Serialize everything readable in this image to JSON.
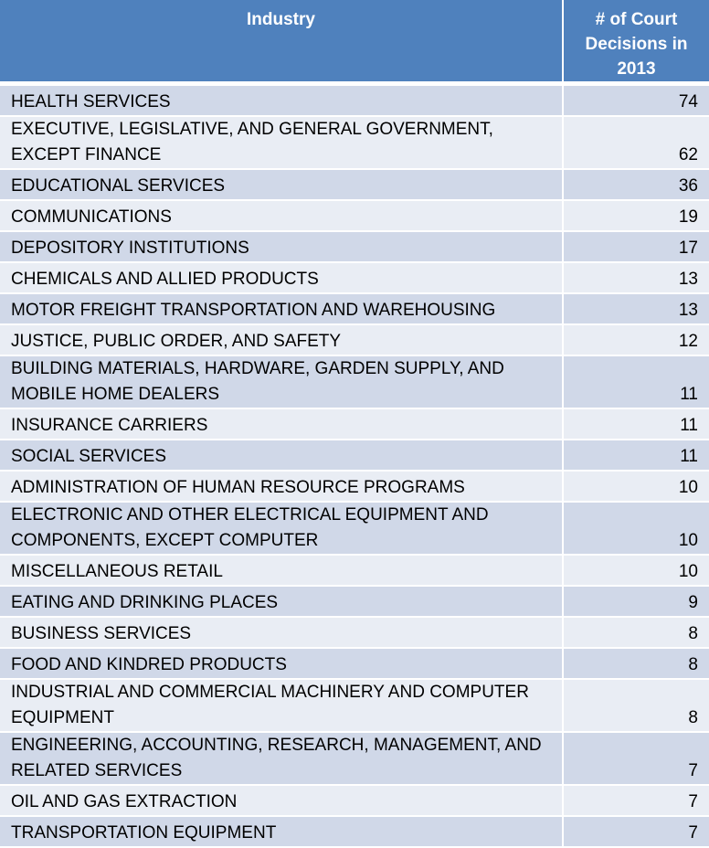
{
  "chart_data": {
    "type": "table",
    "columns": [
      "Industry",
      "# of Court Decisions in 2013"
    ],
    "header_lines": [
      "# of Court",
      "Decisions in",
      "2013"
    ],
    "rows": [
      {
        "industry": "HEALTH SERVICES",
        "count": "74"
      },
      {
        "industry": "EXECUTIVE, LEGISLATIVE, AND GENERAL GOVERNMENT, EXCEPT FINANCE",
        "count": "62"
      },
      {
        "industry": "EDUCATIONAL SERVICES",
        "count": "36"
      },
      {
        "industry": "COMMUNICATIONS",
        "count": "19"
      },
      {
        "industry": "DEPOSITORY INSTITUTIONS",
        "count": "17"
      },
      {
        "industry": "CHEMICALS AND ALLIED PRODUCTS",
        "count": "13"
      },
      {
        "industry": "MOTOR FREIGHT TRANSPORTATION AND WAREHOUSING",
        "count": "13"
      },
      {
        "industry": "JUSTICE, PUBLIC ORDER, AND SAFETY",
        "count": "12"
      },
      {
        "industry": "BUILDING MATERIALS, HARDWARE, GARDEN SUPPLY, AND MOBILE HOME DEALERS",
        "count": "11"
      },
      {
        "industry": "INSURANCE CARRIERS",
        "count": "11"
      },
      {
        "industry": "SOCIAL SERVICES",
        "count": "11"
      },
      {
        "industry": "ADMINISTRATION OF HUMAN RESOURCE PROGRAMS",
        "count": "10"
      },
      {
        "industry": "ELECTRONIC AND OTHER ELECTRICAL EQUIPMENT AND COMPONENTS, EXCEPT COMPUTER",
        "count": "10"
      },
      {
        "industry": "MISCELLANEOUS RETAIL",
        "count": "10"
      },
      {
        "industry": "EATING AND DRINKING PLACES",
        "count": "9"
      },
      {
        "industry": "BUSINESS SERVICES",
        "count": "8"
      },
      {
        "industry": "FOOD AND KINDRED PRODUCTS",
        "count": "8"
      },
      {
        "industry": "INDUSTRIAL AND COMMERCIAL MACHINERY AND COMPUTER EQUIPMENT",
        "count": "8"
      },
      {
        "industry": "ENGINEERING, ACCOUNTING, RESEARCH, MANAGEMENT, AND RELATED SERVICES",
        "count": "7"
      },
      {
        "industry": "OIL AND GAS EXTRACTION",
        "count": "7"
      },
      {
        "industry": "TRANSPORTATION EQUIPMENT",
        "count": "7"
      }
    ],
    "colors": {
      "header": "#4f81bd",
      "row_odd": "#d0d8e8",
      "row_even": "#e9edf4"
    }
  }
}
